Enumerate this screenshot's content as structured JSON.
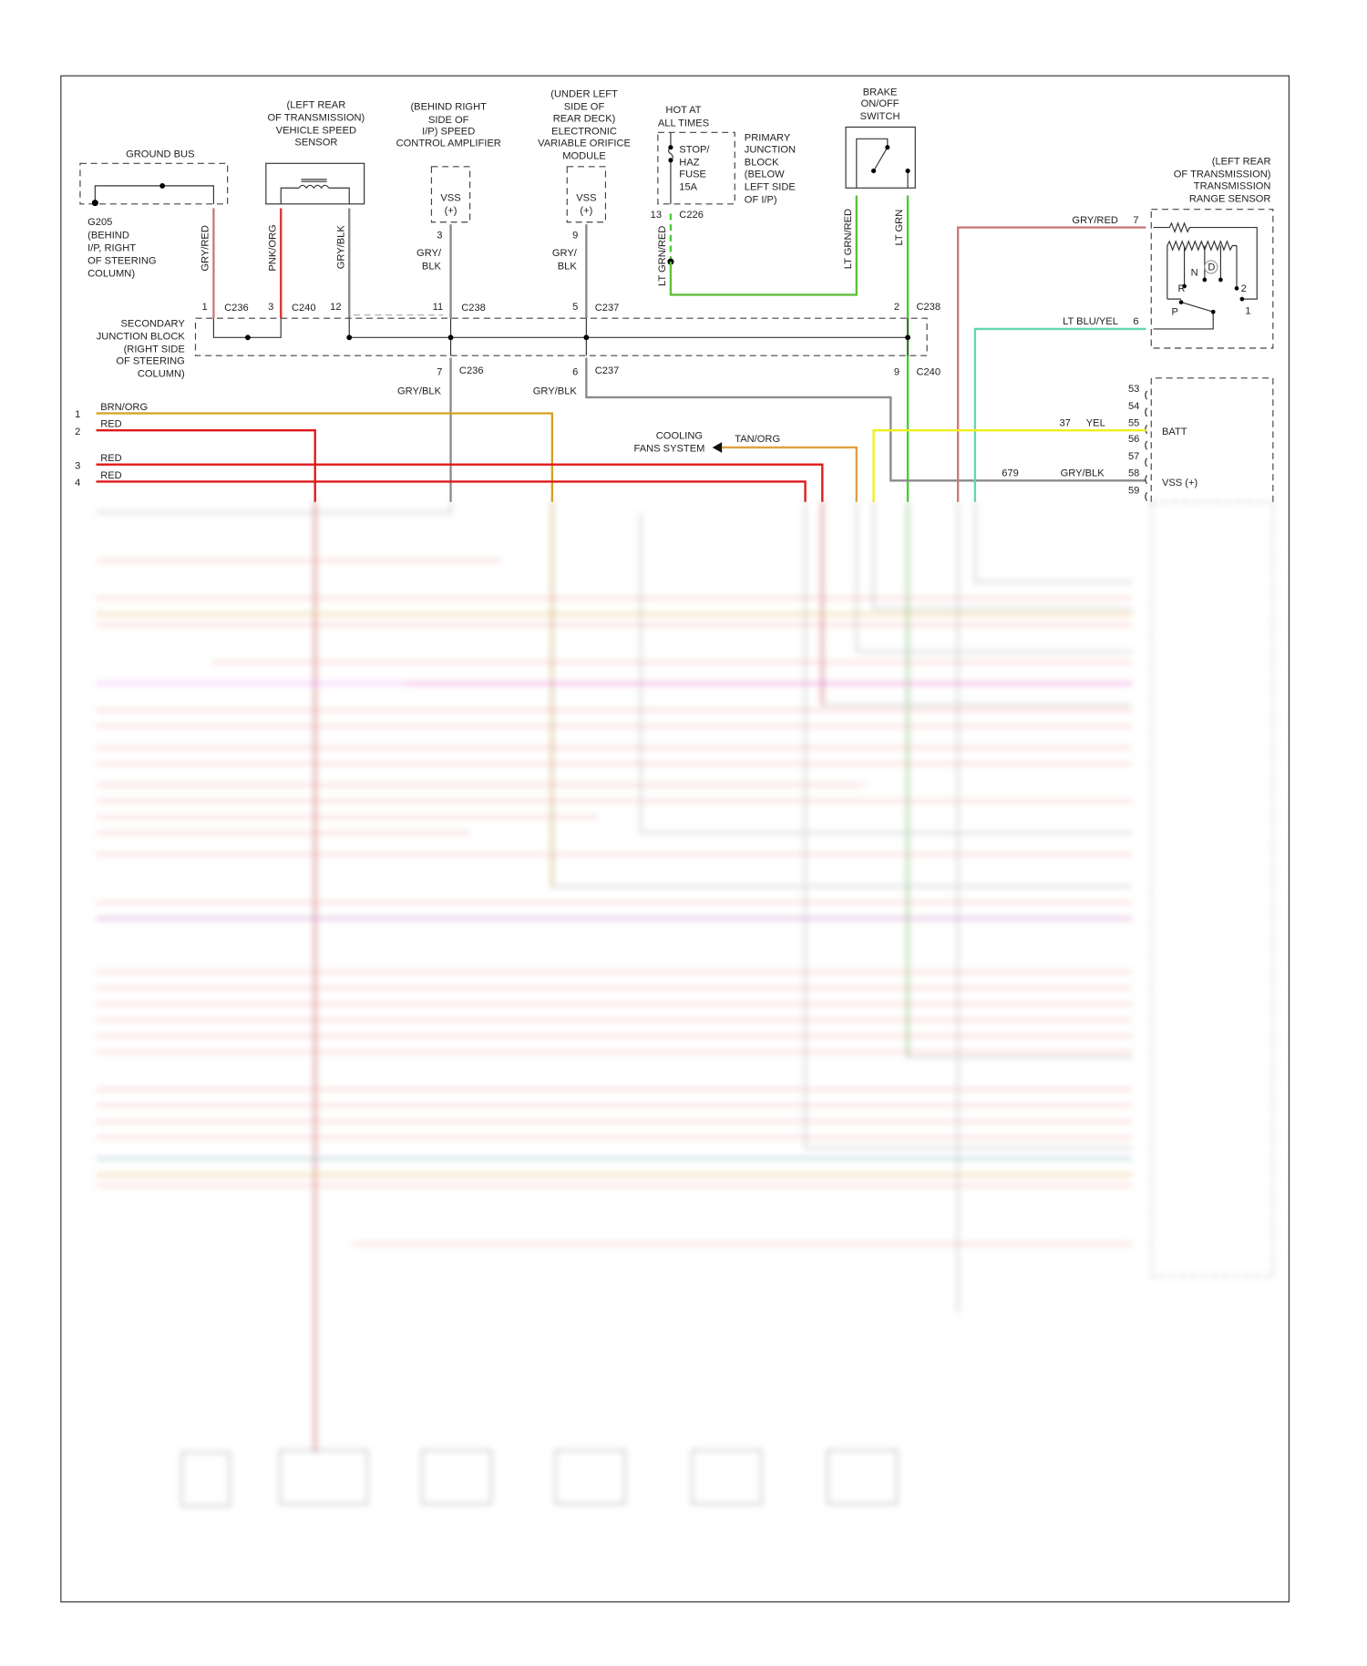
{
  "colors": {
    "gry_red": "#c97a78",
    "pnk_org": "#e03030",
    "gry_blk": "#8a8a8a",
    "lt_grn": "#44cc33",
    "lt_grn_red": "#5fbf3a",
    "brn_org": "#d4a020",
    "red": "#e01818",
    "tan_org": "#e0a040",
    "yel": "#f0f020",
    "lt_blu_yel": "#5fd8b0"
  },
  "ground_bus": {
    "title": "GROUND BUS",
    "ground_label": [
      "G205",
      "(BEHIND",
      "I/P, RIGHT",
      "OF STEERING",
      "COLUMN)"
    ]
  },
  "vss_sensor": {
    "title": [
      "(LEFT REAR",
      "OF TRANSMISSION)",
      "VEHICLE SPEED",
      "SENSOR"
    ]
  },
  "speed_amp": {
    "title": [
      "(BEHIND RIGHT",
      "SIDE OF",
      "I/P) SPEED",
      "CONTROL AMPLIFIER"
    ],
    "box": [
      "VSS",
      "(+)"
    ],
    "pin": "3",
    "wire": [
      "GRY/",
      "BLK"
    ]
  },
  "evo_module": {
    "title": [
      "(UNDER LEFT",
      "SIDE OF",
      "REAR DECK)",
      "ELECTRONIC",
      "VARIABLE ORIFICE",
      "MODULE"
    ],
    "box": [
      "VSS",
      "(+)"
    ],
    "pin": "9",
    "wire": [
      "GRY/",
      "BLK"
    ]
  },
  "primary_jb": {
    "hot": [
      "HOT AT",
      "ALL TIMES"
    ],
    "fuse": [
      "STOP/",
      "HAZ",
      "FUSE",
      "15A"
    ],
    "title": [
      "PRIMARY",
      "JUNCTION",
      "BLOCK",
      "(BELOW",
      "LEFT SIDE",
      "OF I/P)"
    ],
    "pin": "13",
    "connector": "C226",
    "wire": "LT GRN/RED"
  },
  "brake_switch": {
    "title": [
      "BRAKE",
      "ON/OFF",
      "SWITCH"
    ],
    "wire_left": "LT GRN/RED",
    "wire_right": "LT GRN"
  },
  "trs": {
    "title": [
      "(LEFT REAR",
      "OF TRANSMISSION)",
      "TRANSMISSION",
      "RANGE SENSOR"
    ],
    "positions": [
      "R",
      "N",
      "D",
      "2",
      "P",
      "1"
    ],
    "pins": [
      {
        "pin": "7",
        "wire": "GRY/RED"
      },
      {
        "pin": "6",
        "wire": "LT BLU/YEL"
      }
    ]
  },
  "upper_wires": {
    "gry_red": "GRY/RED",
    "pnk_org": "PNK/ORG",
    "gry_blk": "GRY/BLK"
  },
  "top_connectors": [
    {
      "pin": "1",
      "conn": "C236"
    },
    {
      "pin": "3",
      "conn": "C240"
    },
    {
      "pin": "12",
      "conn": ""
    },
    {
      "pin": "11",
      "conn": "C238"
    },
    {
      "pin": "5",
      "conn": "C237"
    },
    {
      "pin": "2",
      "conn": "C238"
    }
  ],
  "secondary_jb": {
    "title": [
      "SECONDARY",
      "JUNCTION BLOCK",
      "(RIGHT SIDE",
      "OF STEERING",
      "COLUMN)"
    ]
  },
  "bottom_connectors": [
    {
      "pin": "7",
      "conn": "C236",
      "wire": "GRY/BLK"
    },
    {
      "pin": "6",
      "conn": "C237",
      "wire": "GRY/BLK"
    },
    {
      "pin": "9",
      "conn": "C240"
    }
  ],
  "left_wires": [
    {
      "pin": "1",
      "wire": "BRN/ORG"
    },
    {
      "pin": "2",
      "wire": "RED"
    },
    {
      "pin": "3",
      "wire": "RED"
    },
    {
      "pin": "4",
      "wire": "RED"
    }
  ],
  "cooling": {
    "label": [
      "COOLING",
      "FANS SYSTEM"
    ],
    "wire": "TAN/ORG"
  },
  "pcm": {
    "pins": [
      "53",
      "54",
      "55",
      "56",
      "57",
      "58",
      "59"
    ],
    "batt": {
      "circuit": "37",
      "wire": "YEL",
      "label": "BATT"
    },
    "vss": {
      "circuit": "679",
      "wire": "GRY/BLK",
      "label": "VSS (+)"
    }
  }
}
